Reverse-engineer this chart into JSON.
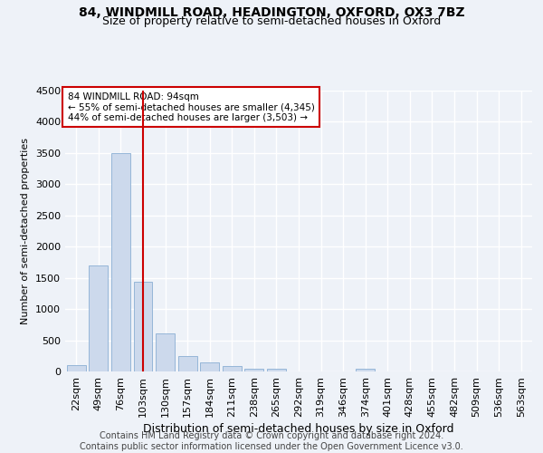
{
  "title1": "84, WINDMILL ROAD, HEADINGTON, OXFORD, OX3 7BZ",
  "title2": "Size of property relative to semi-detached houses in Oxford",
  "xlabel": "Distribution of semi-detached houses by size in Oxford",
  "ylabel": "Number of semi-detached properties",
  "categories": [
    "22sqm",
    "49sqm",
    "76sqm",
    "103sqm",
    "130sqm",
    "157sqm",
    "184sqm",
    "211sqm",
    "238sqm",
    "265sqm",
    "292sqm",
    "319sqm",
    "346sqm",
    "374sqm",
    "401sqm",
    "428sqm",
    "455sqm",
    "482sqm",
    "509sqm",
    "536sqm",
    "563sqm"
  ],
  "values": [
    100,
    1700,
    3500,
    1430,
    610,
    250,
    150,
    80,
    50,
    40,
    5,
    5,
    5,
    40,
    0,
    0,
    0,
    0,
    0,
    0,
    0
  ],
  "bar_color": "#ccd9ec",
  "bar_edge_color": "#8aafd4",
  "vline_bin_index": 3,
  "vline_color": "#cc0000",
  "annotation_text": "84 WINDMILL ROAD: 94sqm\n← 55% of semi-detached houses are smaller (4,345)\n44% of semi-detached houses are larger (3,503) →",
  "annotation_box_color": "#ffffff",
  "annotation_box_edge": "#cc0000",
  "ylim": [
    0,
    4500
  ],
  "yticks": [
    0,
    500,
    1000,
    1500,
    2000,
    2500,
    3000,
    3500,
    4000,
    4500
  ],
  "footnote": "Contains HM Land Registry data © Crown copyright and database right 2024.\nContains public sector information licensed under the Open Government Licence v3.0.",
  "background_color": "#eef2f8",
  "grid_color": "#ffffff",
  "title1_fontsize": 10,
  "title2_fontsize": 9,
  "xlabel_fontsize": 9,
  "ylabel_fontsize": 8,
  "tick_fontsize": 8,
  "footnote_fontsize": 7
}
